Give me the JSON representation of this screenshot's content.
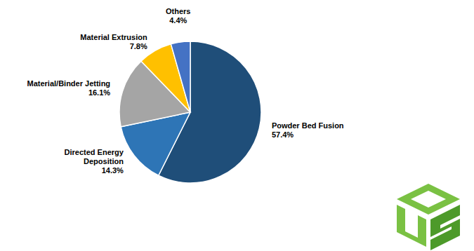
{
  "chart_data": {
    "type": "pie",
    "categories": [
      "Powder Bed Fusion",
      "Directed Energy Deposition",
      "Material/Binder Jetting",
      "Material Extrusion",
      "Others"
    ],
    "values": [
      57.4,
      14.3,
      16.1,
      7.8,
      4.4
    ],
    "value_labels": [
      "57.4%",
      "14.3%",
      "16.1%",
      "7.8%",
      "4.4%"
    ],
    "colors": [
      "#1f4e79",
      "#2e75b6",
      "#a5a5a5",
      "#ffc000",
      "#4472c4"
    ],
    "data_labels": true
  }
}
